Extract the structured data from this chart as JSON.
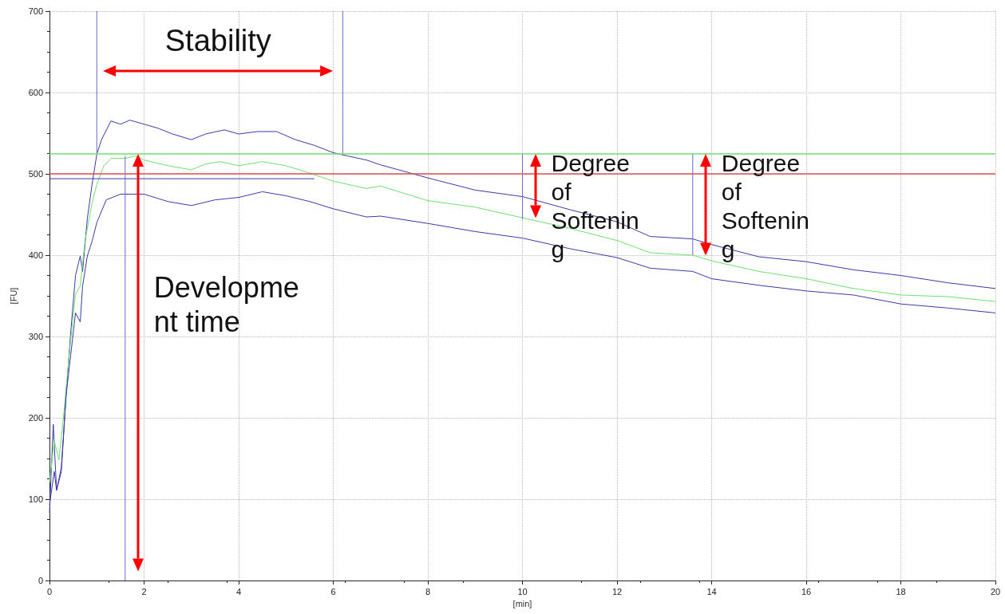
{
  "chart_data": {
    "type": "line",
    "xlabel": "[min]",
    "ylabel": "[FU]",
    "xlim": [
      0,
      20
    ],
    "xticks": [
      0,
      2,
      4,
      6,
      8,
      10,
      12,
      14,
      16,
      18,
      20
    ],
    "ylim": [
      0,
      700
    ],
    "yticks": [
      0,
      100,
      200,
      300,
      400,
      500,
      600,
      700
    ],
    "grid": true,
    "series": [
      {
        "color": "#3a3aa8",
        "x": [
          0,
          0.08,
          0.15,
          0.25,
          0.35,
          0.45,
          0.55,
          0.65,
          0.7,
          0.8,
          0.9,
          1.0,
          1.1,
          1.3,
          1.5,
          1.7,
          2.0,
          2.3,
          2.6,
          3.0,
          3.3,
          3.7,
          4.0,
          4.4,
          4.8,
          5.2,
          5.6,
          6.0,
          6.3,
          6.7,
          7,
          8,
          9,
          10,
          11,
          12,
          12.7,
          13.6,
          14,
          15,
          16,
          17,
          18,
          19,
          20
        ],
        "values": [
          83,
          192,
          111,
          139,
          227,
          306,
          375,
          399,
          380,
          445,
          487,
          524,
          542,
          565,
          561,
          566,
          561,
          556,
          549,
          542,
          549,
          554,
          549,
          552,
          552,
          542,
          535,
          526,
          522,
          517,
          511,
          495,
          480,
          472,
          456,
          441,
          423,
          420,
          413,
          398,
          392,
          382,
          375,
          366,
          359
        ]
      },
      {
        "color": "#6ee06e",
        "x": [
          0,
          0.1,
          0.2,
          0.3,
          0.45,
          0.55,
          0.65,
          0.75,
          0.9,
          1.0,
          1.15,
          1.3,
          1.6,
          1.8,
          2.0,
          2.5,
          3.0,
          3.3,
          3.6,
          4.0,
          4.5,
          5.0,
          5.5,
          6.0,
          6.7,
          7,
          8,
          9,
          10,
          11,
          12,
          12.7,
          13.6,
          14,
          15,
          16,
          17,
          18,
          19,
          20
        ],
        "values": [
          120,
          172,
          148,
          204,
          297,
          352,
          362,
          417,
          464,
          487,
          510,
          519,
          519,
          522,
          517,
          510,
          505,
          512,
          515,
          510,
          515,
          510,
          501,
          491,
          482,
          485,
          467,
          459,
          446,
          433,
          418,
          403,
          400,
          393,
          380,
          371,
          359,
          351,
          349,
          343
        ]
      },
      {
        "color": "#3a3aa8",
        "x": [
          0,
          0.1,
          0.15,
          0.25,
          0.35,
          0.45,
          0.55,
          0.65,
          0.7,
          0.8,
          0.9,
          1.0,
          1.2,
          1.5,
          2.0,
          2.5,
          3.0,
          3.5,
          4.0,
          4.5,
          5.0,
          5.5,
          6.0,
          6.7,
          7,
          8,
          9,
          10,
          11,
          12,
          12.7,
          13.6,
          14,
          15,
          16,
          17,
          18,
          19,
          20
        ],
        "values": [
          93,
          134,
          111,
          134,
          227,
          278,
          329,
          318,
          362,
          399,
          417,
          440,
          468,
          475,
          475,
          466,
          461,
          468,
          471,
          478,
          473,
          466,
          457,
          447,
          448,
          439,
          429,
          421,
          408,
          397,
          384,
          380,
          371,
          363,
          356,
          351,
          340,
          335,
          329
        ]
      },
      {
        "color": "#3a3aa8",
        "x": [
          0,
          5.6
        ],
        "values": [
          494,
          494
        ]
      },
      {
        "color": "#6a6ad0",
        "x": [
          1.0,
          1.0
        ],
        "values": [
          524,
          700
        ]
      },
      {
        "color": "#6a6ad0",
        "x": [
          1.6,
          1.6
        ],
        "values": [
          0,
          522
        ]
      },
      {
        "color": "#6a6ad0",
        "x": [
          6.2,
          6.2
        ],
        "values": [
          524,
          700
        ]
      },
      {
        "color": "#6a6ad0",
        "x": [
          10,
          10
        ],
        "values": [
          525,
          444
        ]
      },
      {
        "color": "#6a6ad0",
        "x": [
          13.6,
          13.6
        ],
        "values": [
          525,
          400
        ]
      }
    ],
    "ref_lines": [
      {
        "axis": "y",
        "value": 525,
        "color": "#6ee06e"
      },
      {
        "axis": "y",
        "value": 500,
        "color": "#e05050"
      }
    ],
    "annotations": [
      "Stability",
      "Development time",
      {
        "text": "Degree of Softening",
        "x": 10,
        "y": 446
      },
      {
        "text": "Degree of Softening",
        "x": 13.6,
        "y": 400
      }
    ]
  }
}
